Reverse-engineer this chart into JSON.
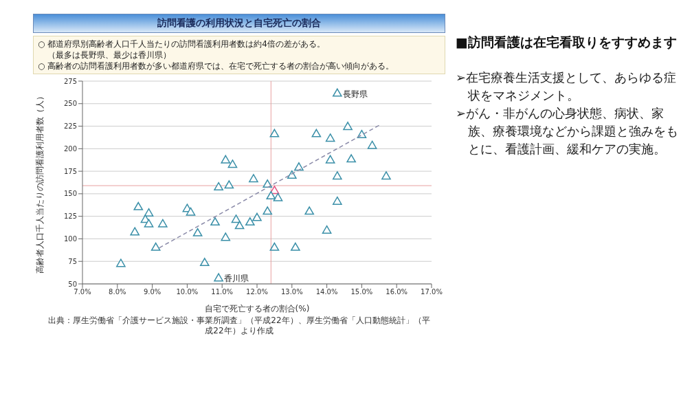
{
  "chart_data": [
    {
      "type": "scatter",
      "title": "訪問看護の利用状況と自宅死亡の割合",
      "xlabel": "自宅で死亡する者の割合(%)",
      "ylabel": "高齢者人口千人当たりの訪問看護利用者数（人）",
      "x": [
        14.3,
        14.6,
        15.0,
        15.3,
        14.1,
        13.7,
        12.5,
        13.2,
        14.1,
        14.7,
        14.3,
        15.7,
        13.0,
        11.9,
        12.3,
        12.5,
        11.1,
        11.3,
        10.9,
        11.2,
        8.6,
        8.9,
        8.8,
        8.9,
        8.5,
        9.3,
        9.1,
        8.1,
        10.0,
        10.1,
        10.3,
        10.8,
        10.5,
        10.9,
        11.1,
        11.4,
        11.5,
        11.8,
        12.0,
        12.6,
        12.4,
        14.3,
        13.5,
        12.3,
        14.0,
        12.5,
        13.1
      ],
      "series": [
        {
          "type": "scatter",
          "values": [
            261,
            224,
            215,
            203,
            211,
            216,
            216,
            179,
            187,
            188,
            169,
            169,
            170,
            166,
            160,
            153,
            187,
            182,
            157,
            159,
            135,
            128,
            121,
            116,
            107,
            116,
            90,
            72,
            133,
            129,
            106,
            118,
            73,
            56,
            101,
            121,
            114,
            118,
            123,
            145,
            147,
            141,
            130,
            130,
            109,
            90,
            90
          ],
          "colors": [
            "#3a8fa8",
            "#3a8fa8",
            "#3a8fa8",
            "#3a8fa8",
            "#3a8fa8",
            "#3a8fa8",
            "#3a8fa8",
            "#3a8fa8",
            "#3a8fa8",
            "#3a8fa8",
            "#3a8fa8",
            "#3a8fa8",
            "#3a8fa8",
            "#3a8fa8",
            "#3a8fa8",
            "#e05080",
            "#3a8fa8",
            "#3a8fa8",
            "#3a8fa8",
            "#3a8fa8",
            "#3a8fa8",
            "#3a8fa8",
            "#3a8fa8",
            "#3a8fa8",
            "#3a8fa8",
            "#3a8fa8",
            "#3a8fa8",
            "#3a8fa8",
            "#3a8fa8",
            "#3a8fa8",
            "#3a8fa8",
            "#3a8fa8",
            "#3a8fa8",
            "#3a8fa8",
            "#3a8fa8",
            "#3a8fa8",
            "#3a8fa8",
            "#3a8fa8",
            "#3a8fa8",
            "#3a8fa8",
            "#3a8fa8",
            "#3a8fa8",
            "#3a8fa8",
            "#3a8fa8",
            "#3a8fa8",
            "#3a8fa8",
            "#3a8fa8"
          ]
        },
        {
          "type": "line",
          "x": [
            9.2,
            15.5
          ],
          "values": [
            90,
            226
          ],
          "color": "#8a8aa8",
          "line_style": "dashed",
          "marker": "none"
        }
      ],
      "marker": "triangle",
      "xlim": [
        7,
        17
      ],
      "xticks": [
        {
          "value": 7,
          "label": "7.0%"
        },
        {
          "value": 8,
          "label": "8.0%"
        },
        {
          "value": 9,
          "label": "9.0%"
        },
        {
          "value": 10,
          "label": "10.0%"
        },
        {
          "value": 11,
          "label": "11.0%"
        },
        {
          "value": 12,
          "label": "12.0%"
        },
        {
          "value": 13,
          "label": "13.0%"
        },
        {
          "value": 14,
          "label": "14.0%"
        },
        {
          "value": 15,
          "label": "15.0%"
        },
        {
          "value": 16,
          "label": "16.0%"
        },
        {
          "value": 17,
          "label": "17.0%"
        }
      ],
      "ylim": [
        50,
        275
      ],
      "yticks": [
        50,
        75,
        100,
        125,
        150,
        175,
        200,
        225,
        250,
        275
      ],
      "grid": "y",
      "ref_lines": [
        {
          "axis": "x",
          "value": 12.4,
          "color": "#e8a0a0"
        },
        {
          "axis": "y",
          "value": 159,
          "color": "#e8a0a0"
        }
      ],
      "annotations": [
        "○ 都道府県別高齢者人口千人当たりの訪問看護利用者数は約4倍の差がある。",
        "（最多は長野県、最少は香川県）",
        "○ 高齢者の訪問看護利用者数が多い都道府県では、在宅で死亡する者の割合が高い傾向がある。",
        {
          "text": "長野県",
          "x": 14.3,
          "y": 261
        },
        {
          "text": "香川県",
          "x": 10.9,
          "y": 56
        },
        "出典：厚生労働省「介護サービス施設・事業所調査」（平成22年）、厚生労働省「人口動態統計」（平成22年）より作成"
      ]
    },
    {
      "type": "other",
      "title": "■訪問看護は在宅看取りをすすめます",
      "annotations": [
        "➢在宅療養生活支援として、あらゆる症状をマネジメント。",
        "➢がん・非がんの心身状態、病状、家族、療養環境などから課題と強みをもとに、看護計画、緩和ケアの実施。"
      ]
    }
  ]
}
